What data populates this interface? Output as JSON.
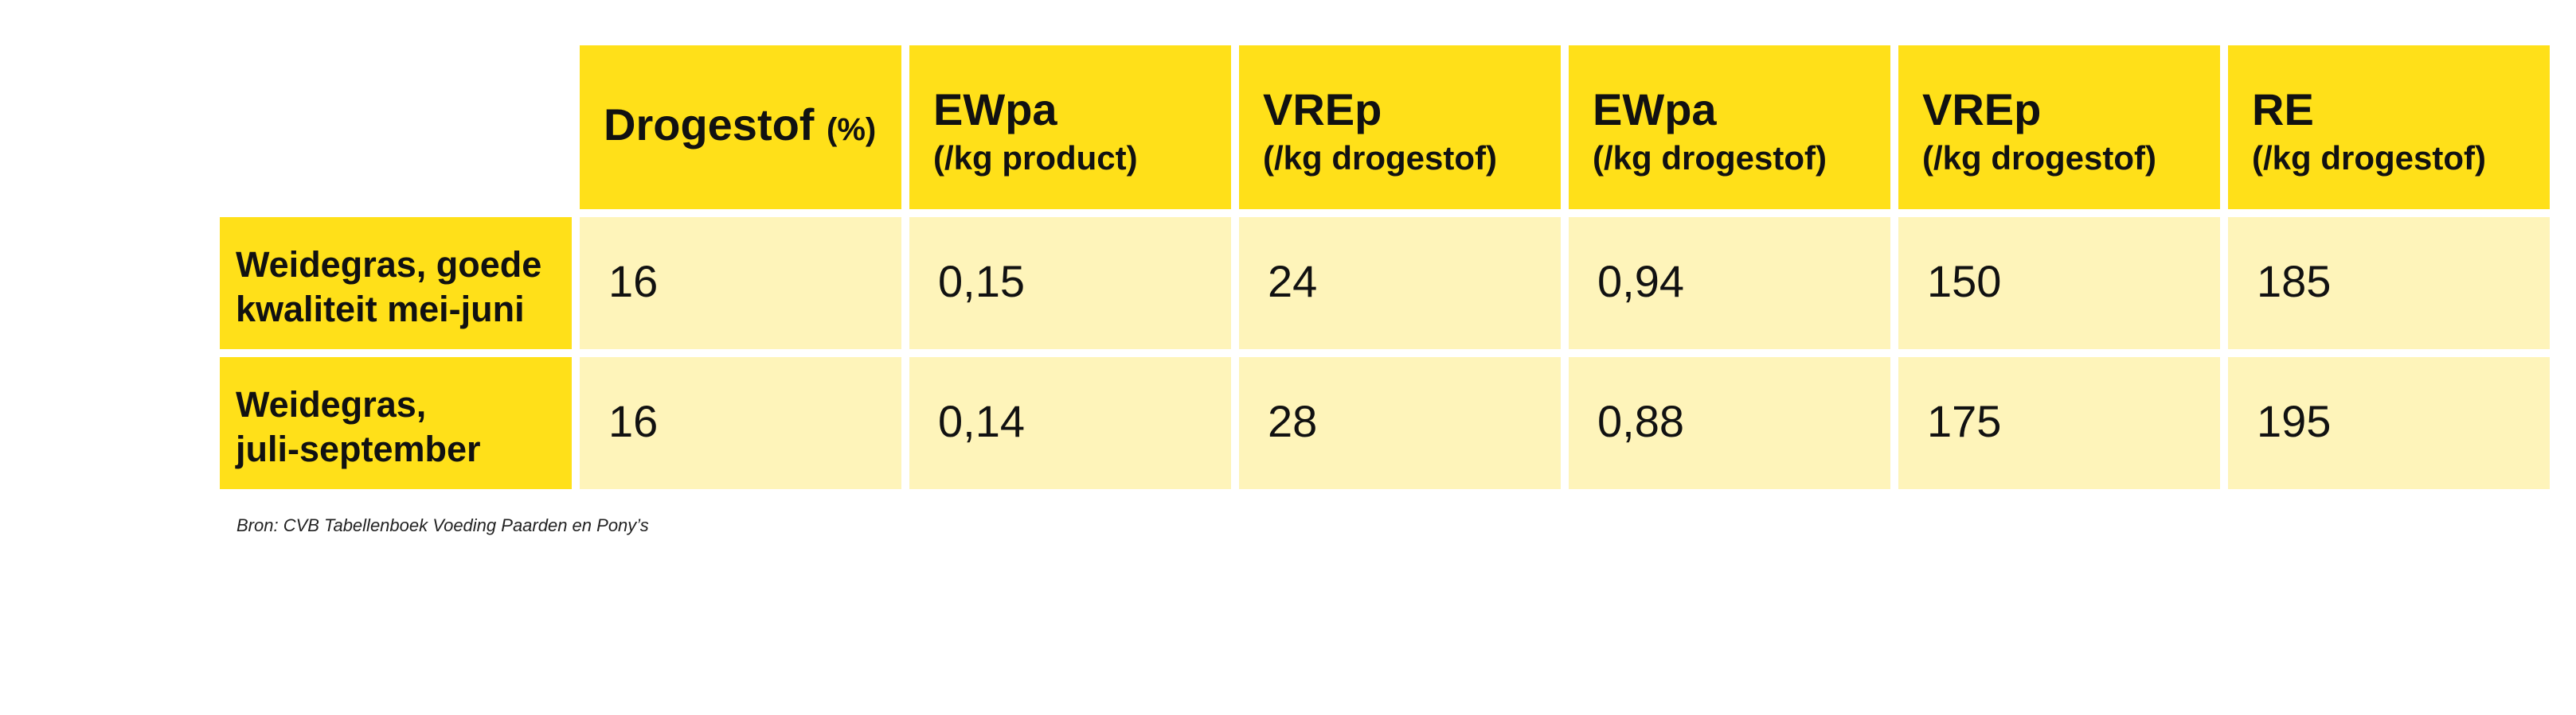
{
  "table": {
    "headers": [
      {
        "main": "Drogestof",
        "unit": "(%)",
        "sub": ""
      },
      {
        "main": "EWpa",
        "unit": "",
        "sub": "(/kg product)"
      },
      {
        "main": "VREp",
        "unit": "",
        "sub": "(/kg drogestof)"
      },
      {
        "main": "EWpa",
        "unit": "",
        "sub": "(/kg drogestof)"
      },
      {
        "main": "VREp",
        "unit": "",
        "sub": "(/kg drogestof)"
      },
      {
        "main": "RE",
        "unit": "",
        "sub": "(/kg drogestof)"
      }
    ],
    "rows": [
      {
        "label_line1": "Weidegras, goede",
        "label_line2": "kwaliteit mei-juni",
        "values": [
          "16",
          "0,15",
          "24",
          "0,94",
          "150",
          "185"
        ]
      },
      {
        "label_line1": "Weidegras,",
        "label_line2": "juli-september",
        "values": [
          "16",
          "0,14",
          "28",
          "0,88",
          "175",
          "195"
        ]
      }
    ]
  },
  "source": "Bron: CVB Tabellenboek Voeding Paarden en Pony’s",
  "colors": {
    "header_bg": "#FFE019",
    "cell_bg": "#FEF4BA"
  }
}
